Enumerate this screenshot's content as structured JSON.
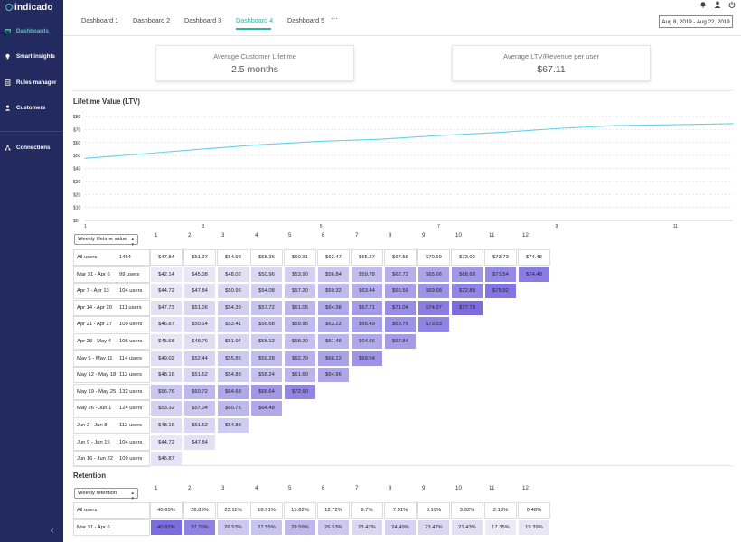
{
  "brand": {
    "name": "indicado",
    "logo_icon": "indicado-logo-icon"
  },
  "sidebar": {
    "items": [
      {
        "label": "Dashboards",
        "icon": "dashboard-icon",
        "active": true
      },
      {
        "label": "Smart insights",
        "icon": "lightbulb-icon",
        "active": false
      },
      {
        "label": "Rules manager",
        "icon": "rules-icon",
        "active": false
      },
      {
        "label": "Customers",
        "icon": "user-icon",
        "active": false
      },
      {
        "label": "Connections",
        "icon": "connections-icon",
        "active": false
      }
    ],
    "collapse_icon": "chevron-left-icon"
  },
  "header": {
    "icons": [
      "bell-icon",
      "account-icon",
      "power-icon"
    ],
    "tabs": [
      {
        "label": "Dashboard 1",
        "active": false
      },
      {
        "label": "Dashboard 2",
        "active": false
      },
      {
        "label": "Dashboard 3",
        "active": false
      },
      {
        "label": "Dashboard 4",
        "active": true
      },
      {
        "label": "Dashboard 5",
        "active": false
      }
    ],
    "more_label": "···",
    "date_range": "Aug 8, 2019 - Aug 22, 2019"
  },
  "kpis": [
    {
      "label": "Average Customer Lifetime",
      "value": "2.5 months"
    },
    {
      "label": "Average LTV/Revenue per user",
      "value": "$67.11"
    }
  ],
  "ltv_section": {
    "title": "Lifetime Value (LTV)"
  },
  "chart_data": {
    "type": "line",
    "title": "",
    "xlabel": "",
    "ylabel": "",
    "x_ticks": [
      "1",
      "3",
      "5",
      "7",
      "9",
      "11"
    ],
    "y_ticks": [
      "$0",
      "$10",
      "$20",
      "$30",
      "$40",
      "$50",
      "$60",
      "$70",
      "$80"
    ],
    "xlim": [
      1,
      12
    ],
    "ylim": [
      0,
      80
    ],
    "grid": true,
    "series": [
      {
        "color": "#5fd3e6",
        "x": [
          1,
          2,
          3,
          4,
          5,
          6,
          7,
          8,
          9,
          10,
          11,
          12
        ],
        "y": [
          47.8,
          51.3,
          55.0,
          58.4,
          60.9,
          62.5,
          65.3,
          67.6,
          70.7,
          73.0,
          73.7,
          74.5
        ]
      }
    ]
  },
  "ltv_table": {
    "selector_label": "Weekly lifetime value",
    "columns": [
      "1",
      "2",
      "3",
      "4",
      "5",
      "6",
      "7",
      "8",
      "9",
      "10",
      "11",
      "12"
    ],
    "rows": [
      {
        "cohort": "All users",
        "users": "1454",
        "values": [
          "$47.84",
          "$51.27",
          "$54.98",
          "$58.36",
          "$60.91",
          "$62.47",
          "$65.27",
          "$67.58",
          "$70.69",
          "$73.03",
          "$73.73",
          "$74.48"
        ]
      },
      {
        "cohort": "Mar 31 - Apr 6",
        "users": "99 users",
        "values": [
          "$42.14",
          "$45.08",
          "$48.02",
          "$50.96",
          "$53.90",
          "$56.84",
          "$59.78",
          "$62.72",
          "$65.66",
          "$68.60",
          "$71.54",
          "$74.48"
        ]
      },
      {
        "cohort": "Apr 7 - Apr 13",
        "users": "104 users",
        "values": [
          "$44.72",
          "$47.84",
          "$50.96",
          "$54.08",
          "$57.20",
          "$60.32",
          "$63.44",
          "$66.56",
          "$69.68",
          "$72.80",
          "$75.92"
        ]
      },
      {
        "cohort": "Apr 14 - Apr 20",
        "users": "111 users",
        "values": [
          "$47.73",
          "$51.06",
          "$54.39",
          "$57.72",
          "$61.05",
          "$64.38",
          "$67.71",
          "$71.04",
          "$74.37",
          "$77.70"
        ]
      },
      {
        "cohort": "Apr 21 - Apr 27",
        "users": "109 users",
        "values": [
          "$46.87",
          "$50.14",
          "$53.41",
          "$56.68",
          "$59.95",
          "$63.22",
          "$66.49",
          "$69.76",
          "$73.03"
        ]
      },
      {
        "cohort": "Apr 28 - May 4",
        "users": "106 users",
        "values": [
          "$45.58",
          "$48.76",
          "$51.94",
          "$55.12",
          "$58.30",
          "$61.48",
          "$64.66",
          "$67.84"
        ]
      },
      {
        "cohort": "May 5 - May 11",
        "users": "114 users",
        "values": [
          "$49.02",
          "$52.44",
          "$55.86",
          "$59.28",
          "$62.70",
          "$66.12",
          "$69.54"
        ]
      },
      {
        "cohort": "May 12 - May 18",
        "users": "112 users",
        "values": [
          "$48.16",
          "$51.52",
          "$54.88",
          "$58.24",
          "$61.60",
          "$64.96"
        ]
      },
      {
        "cohort": "May 19 - May 25",
        "users": "132 users",
        "values": [
          "$56.76",
          "$60.72",
          "$64.68",
          "$68.64",
          "$72.60"
        ]
      },
      {
        "cohort": "May 26 - Jun 1",
        "users": "124 users",
        "values": [
          "$53.32",
          "$57.04",
          "$60.76",
          "$64.48"
        ]
      },
      {
        "cohort": "Jun 2 - Jun 8",
        "users": "112 users",
        "values": [
          "$48.16",
          "$51.52",
          "$54.88"
        ]
      },
      {
        "cohort": "Jun 9 - Jun 15",
        "users": "104 users",
        "values": [
          "$44.72",
          "$47.84"
        ]
      },
      {
        "cohort": "Jun 16 - Jun 22",
        "users": "109 users",
        "values": [
          "$46.87"
        ]
      }
    ]
  },
  "retention_section": {
    "title": "Retention"
  },
  "retention_table": {
    "selector_label": "Weekly retention",
    "columns": [
      "1",
      "2",
      "3",
      "4",
      "5",
      "6",
      "7",
      "8",
      "9",
      "10",
      "11",
      "12"
    ],
    "rows": [
      {
        "cohort": "All users",
        "users": "",
        "values": [
          "40.65%",
          "28.89%",
          "23.11%",
          "18.91%",
          "15.82%",
          "12.72%",
          "9.7%",
          "7.91%",
          "6.19%",
          "3.92%",
          "2.13%",
          "0.48%"
        ]
      },
      {
        "cohort": "Mar 31 - Apr 6",
        "users": "",
        "values": [
          "40.82%",
          "37.76%",
          "26.53%",
          "27.55%",
          "29.59%",
          "26.53%",
          "23.47%",
          "24.49%",
          "23.47%",
          "21.43%",
          "17.35%",
          "19.39%"
        ]
      }
    ]
  },
  "colors": {
    "sidebar_bg": "#232a5f",
    "accent": "#2bb5a0",
    "line": "#5fd3e6",
    "heat_low": "#eceaf6",
    "heat_high": "#7b6ce0"
  }
}
